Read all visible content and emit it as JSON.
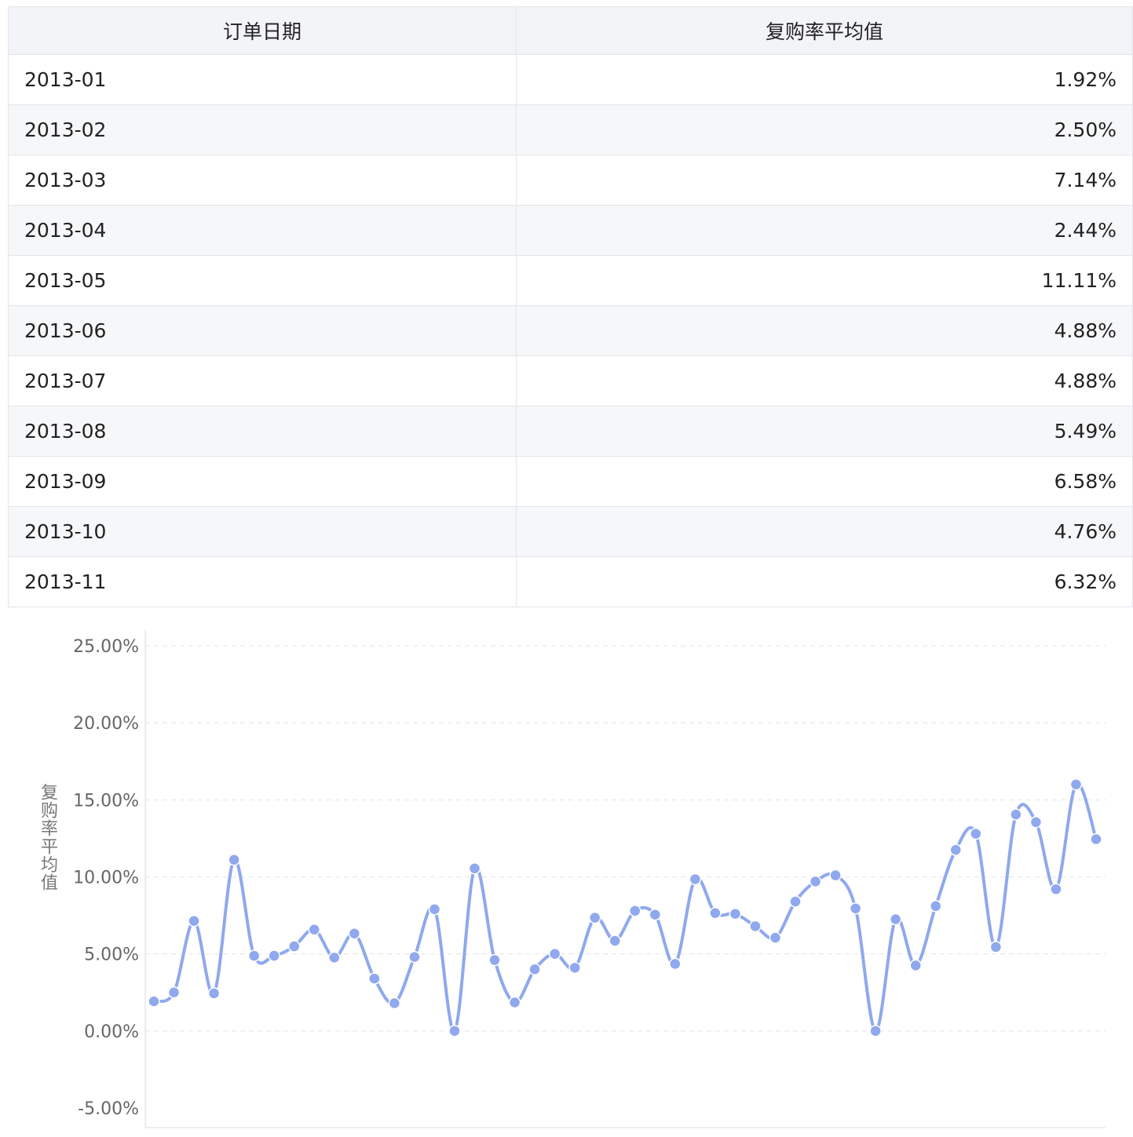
{
  "table": {
    "headers": [
      "订单日期",
      "复购率平均值"
    ],
    "rows": [
      {
        "date": "2013-01",
        "value": "1.92%"
      },
      {
        "date": "2013-02",
        "value": "2.50%"
      },
      {
        "date": "2013-03",
        "value": "7.14%"
      },
      {
        "date": "2013-04",
        "value": "2.44%"
      },
      {
        "date": "2013-05",
        "value": "11.11%"
      },
      {
        "date": "2013-06",
        "value": "4.88%"
      },
      {
        "date": "2013-07",
        "value": "4.88%"
      },
      {
        "date": "2013-08",
        "value": "5.49%"
      },
      {
        "date": "2013-09",
        "value": "6.58%"
      },
      {
        "date": "2013-10",
        "value": "4.76%"
      },
      {
        "date": "2013-11",
        "value": "6.32%"
      }
    ]
  },
  "chart_data": {
    "type": "line",
    "ylabel": "复购率平均值",
    "ylim": [
      -5,
      25
    ],
    "yticks": [
      -5,
      0,
      5,
      10,
      15,
      20,
      25
    ],
    "ytick_labels": [
      "-5.00%",
      "0.00%",
      "5.00%",
      "10.00%",
      "15.00%",
      "20.00%",
      "25.00%"
    ],
    "grid": true,
    "smooth": true,
    "color": "#8fa8ee",
    "series": [
      {
        "values": [
          1.92,
          2.5,
          7.14,
          2.44,
          11.11,
          4.88,
          4.88,
          5.49,
          6.58,
          4.76,
          6.32,
          3.4,
          1.8,
          4.8,
          7.9,
          0.0,
          10.55,
          4.6,
          1.85,
          4.0,
          5.0,
          4.1,
          7.35,
          5.85,
          7.8,
          7.55,
          4.35,
          9.85,
          7.65,
          7.6,
          6.8,
          6.05,
          8.4,
          9.7,
          10.1,
          7.95,
          0.0,
          7.25,
          4.25,
          8.1,
          11.75,
          12.8,
          5.45,
          14.05,
          13.55,
          9.2,
          16.0,
          12.45
        ]
      }
    ]
  }
}
